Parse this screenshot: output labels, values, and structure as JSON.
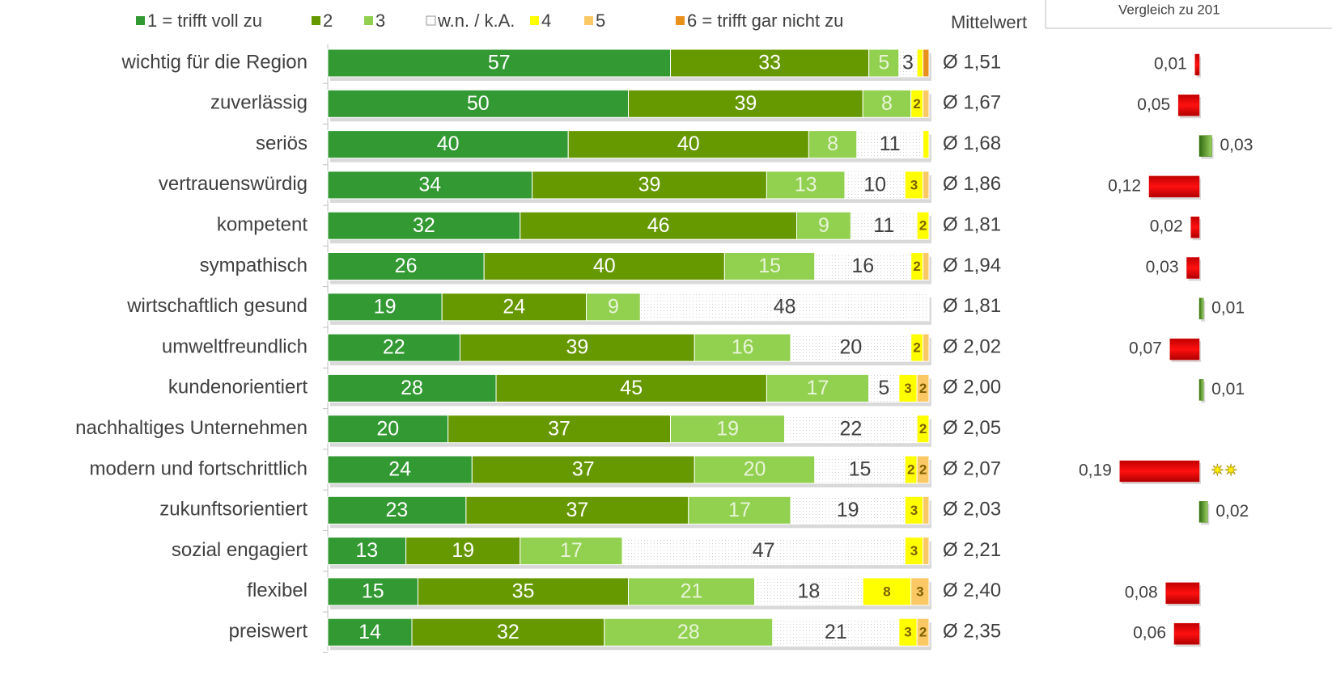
{
  "chart_data": [
    {
      "type": "bar",
      "orientation": "horizontal",
      "stacked": true,
      "categories": [
        "wichtig für die Region",
        "zuverlässig",
        "seriös",
        "vertrauenswürdig",
        "kompetent",
        "sympathisch",
        "wirtschaftlich gesund",
        "umweltfreundlich",
        "kundenorientiert",
        "nachhaltiges Unternehmen",
        "modern und fortschrittlich",
        "zukunftsorientiert",
        "sozial engagiert",
        "flexibel",
        "preiswert"
      ],
      "series": [
        {
          "name": "1 = trifft voll zu",
          "color": "#339933",
          "values": [
            57,
            50,
            40,
            34,
            32,
            26,
            19,
            22,
            28,
            20,
            24,
            23,
            13,
            15,
            14
          ]
        },
        {
          "name": "2",
          "color": "#669900",
          "values": [
            33,
            39,
            40,
            39,
            46,
            40,
            24,
            39,
            45,
            37,
            37,
            37,
            19,
            35,
            32
          ]
        },
        {
          "name": "3",
          "color": "#92d050",
          "values": [
            5,
            8,
            8,
            13,
            9,
            15,
            9,
            16,
            17,
            19,
            20,
            17,
            17,
            21,
            28
          ]
        },
        {
          "name": "w.n. / k.A.",
          "color": "#ffffff",
          "values": [
            3,
            0,
            11,
            10,
            11,
            16,
            48,
            20,
            5,
            22,
            15,
            19,
            47,
            18,
            21
          ]
        },
        {
          "name": "4",
          "color": "#ffff00",
          "values": [
            1,
            2,
            1,
            3,
            2,
            2,
            0,
            2,
            3,
            2,
            2,
            3,
            3,
            8,
            3
          ]
        },
        {
          "name": "5",
          "color": "#fac864",
          "values": [
            0,
            1,
            0,
            1,
            0,
            1,
            0,
            1,
            2,
            0,
            2,
            1,
            1,
            3,
            2
          ]
        },
        {
          "name": "6 = trifft gar nicht zu",
          "color": "#e8901c",
          "values": [
            1,
            0,
            0,
            0,
            0,
            0,
            0,
            0,
            0,
            0,
            0,
            0,
            0,
            0,
            0
          ]
        }
      ],
      "xlim": [
        0,
        100
      ],
      "mean": {
        "label": "Mittelwert",
        "values": [
          1.51,
          1.67,
          1.68,
          1.86,
          1.81,
          1.94,
          1.81,
          2.02,
          2.0,
          2.05,
          2.07,
          2.03,
          2.21,
          2.4,
          2.35
        ],
        "value_labels": [
          "Ø 1,51",
          "Ø 1,67",
          "Ø 1,68",
          "Ø 1,86",
          "Ø 1,81",
          "Ø 1,94",
          "Ø 1,81",
          "Ø 2,02",
          "Ø 2,00",
          "Ø 2,05",
          "Ø 2,07",
          "Ø 2,03",
          "Ø 2,21",
          "Ø 2,40",
          "Ø 2,35"
        ]
      }
    },
    {
      "type": "bar",
      "orientation": "horizontal",
      "title": "Vergleich zu 201",
      "values": [
        -0.01,
        -0.05,
        0.03,
        -0.12,
        -0.02,
        -0.03,
        0.01,
        -0.07,
        0.01,
        null,
        -0.19,
        0.02,
        null,
        -0.08,
        -0.06
      ],
      "value_labels": [
        "0,01",
        "0,05",
        "0,03",
        "0,12",
        "0,02",
        "0,03",
        "0,01",
        "0,07",
        "0,01",
        null,
        "0,19",
        "0,02",
        null,
        "0,08",
        "0,06"
      ],
      "markers": [
        null,
        null,
        null,
        null,
        null,
        null,
        null,
        null,
        null,
        null,
        "✷✷",
        null,
        null,
        null,
        null
      ],
      "negative_color": "#e00000",
      "positive_color": "#4e8a1e",
      "xlim": [
        -0.3,
        0.3
      ]
    }
  ]
}
